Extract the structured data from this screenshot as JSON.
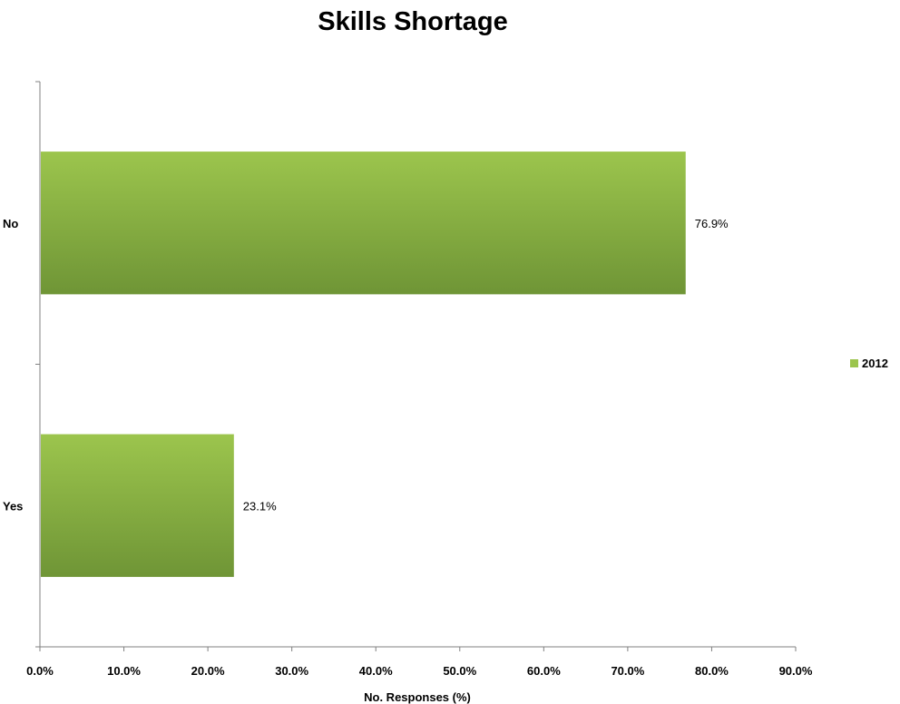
{
  "chart_data": {
    "type": "bar",
    "orientation": "horizontal",
    "title": "Skills Shortage",
    "xlabel": "No. Responses (%)",
    "ylabel": "",
    "categories": [
      "No",
      "Yes"
    ],
    "series": [
      {
        "name": "2012",
        "values": [
          76.9,
          23.1
        ],
        "data_labels": [
          "76.9%",
          "23.1%"
        ]
      }
    ],
    "xlim": [
      0,
      90
    ],
    "x_ticks": [
      0,
      10,
      20,
      30,
      40,
      50,
      60,
      70,
      80,
      90
    ],
    "x_tick_labels": [
      "0.0%",
      "10.0%",
      "20.0%",
      "30.0%",
      "40.0%",
      "50.0%",
      "60.0%",
      "70.0%",
      "80.0%",
      "90.0%"
    ],
    "grid": false,
    "legend": {
      "placement": "right",
      "entries": [
        "2012"
      ]
    },
    "colors": {
      "bar_top": "#9cc54d",
      "bar_bottom": "#6f9536",
      "axis": "#808080"
    }
  }
}
